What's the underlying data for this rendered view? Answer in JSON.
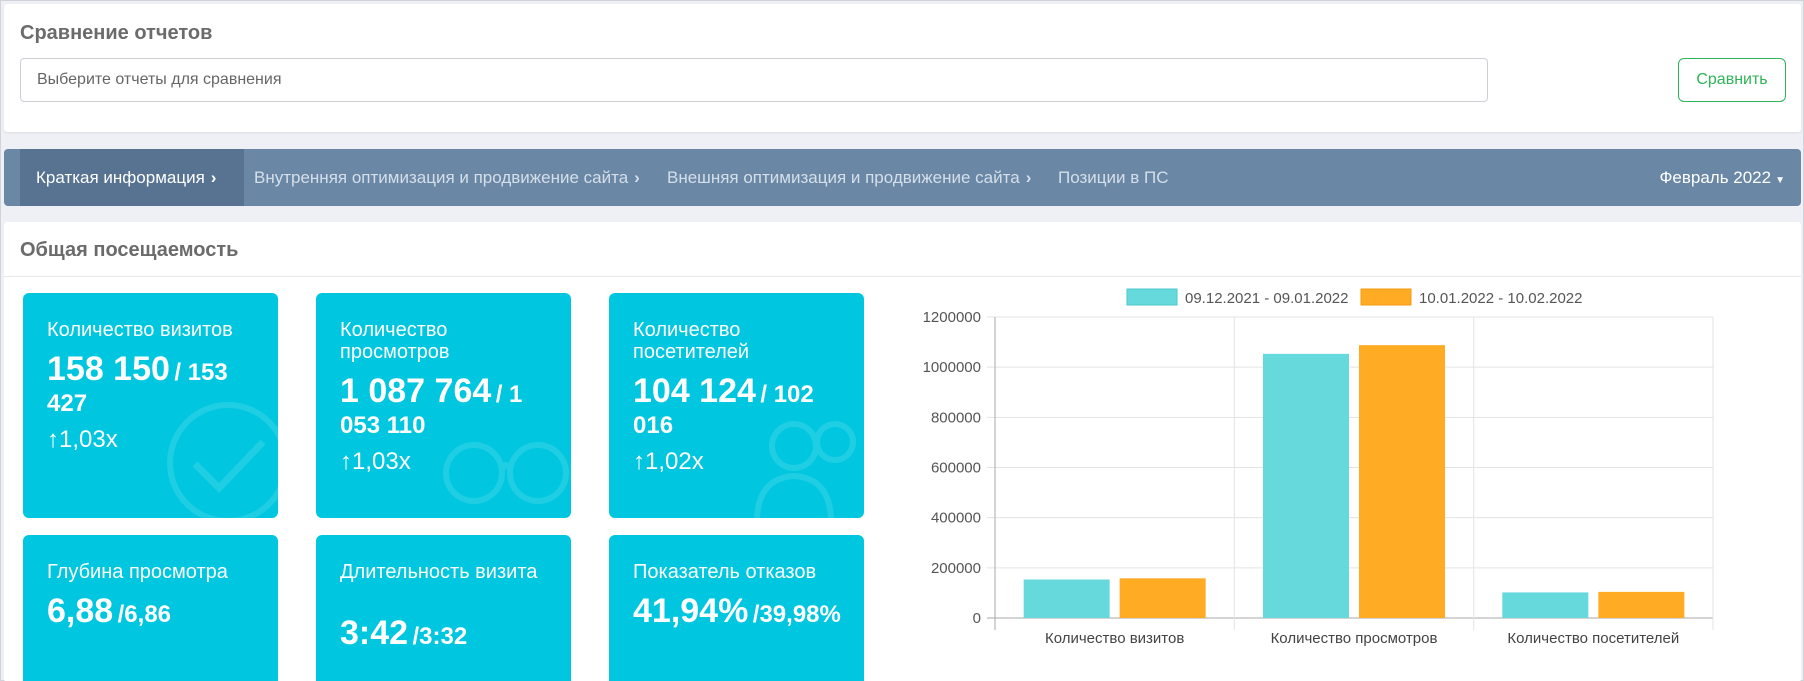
{
  "compare": {
    "title": "Сравнение отчетов",
    "placeholder": "Выберите отчеты для сравнения",
    "button_label": "Сравнить"
  },
  "nav": {
    "tabs": [
      {
        "label": "Краткая информация"
      },
      {
        "label": "Внутренняя оптимизация и продвижение сайта"
      },
      {
        "label": "Внешняя оптимизация и продвижение сайта"
      },
      {
        "label": "Позиции в ПС"
      }
    ],
    "period": "Февраль 2022"
  },
  "section": {
    "title": "Общая посещаемость"
  },
  "tiles": [
    {
      "label": "Количество визитов",
      "value": "158 150",
      "prev": "/ 153 427",
      "ratio": "1,03x"
    },
    {
      "label": "Количество просмотров",
      "value": "1 087 764",
      "prev": "/ 1 053 110",
      "ratio": "1,03x"
    },
    {
      "label": "Количество посетителей",
      "value": "104 124",
      "prev": "/ 102 016",
      "ratio": "1,02x"
    },
    {
      "label": "Глубина просмотра",
      "value": "6,88",
      "prev": "/6,86"
    },
    {
      "label": "Длительность визита",
      "value": "3:42",
      "prev": "/3:32"
    },
    {
      "label": "Показатель отказов",
      "value": "41,94%",
      "prev": "/39,98%"
    }
  ],
  "chart_data": {
    "type": "bar",
    "categories": [
      "Количество визитов",
      "Количество просмотров",
      "Количество посетителей"
    ],
    "series": [
      {
        "name": "09.12.2021 - 09.01.2022",
        "values": [
          153427,
          1053110,
          102016
        ],
        "color": "#66d9dc"
      },
      {
        "name": "10.01.2022 - 10.02.2022",
        "values": [
          158150,
          1087764,
          104124
        ],
        "color": "#ffab24"
      }
    ],
    "ylim": [
      0,
      1200000
    ],
    "yticks": [
      0,
      200000,
      400000,
      600000,
      800000,
      1000000,
      1200000
    ],
    "ytick_labels": [
      "0",
      "200000",
      "400000",
      "600000",
      "800000",
      "1000000",
      "1200000"
    ],
    "legend": "top",
    "title": "",
    "xlabel": "",
    "ylabel": ""
  }
}
